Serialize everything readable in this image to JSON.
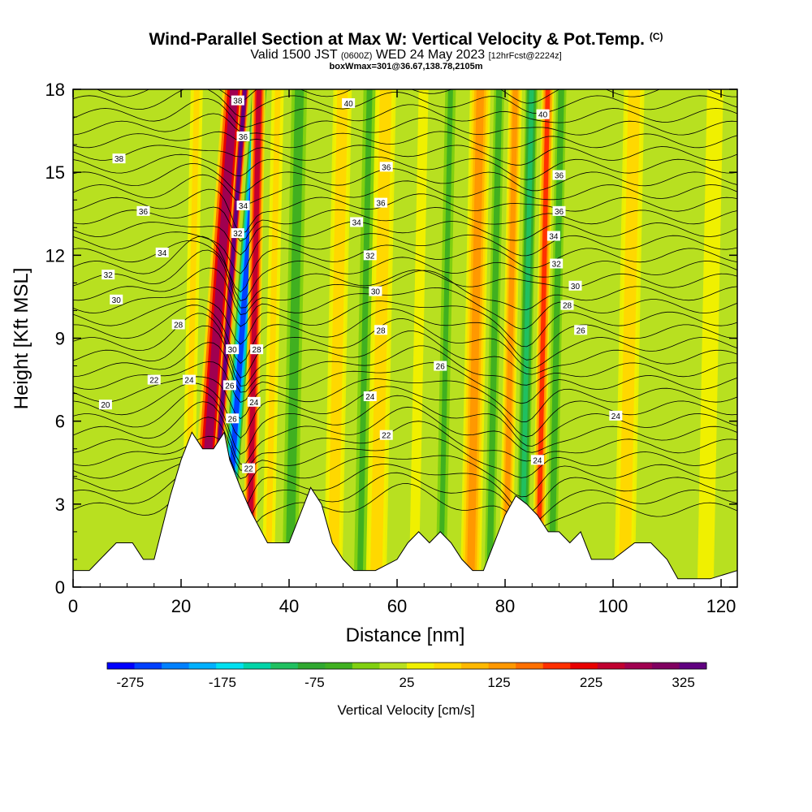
{
  "chart_data": {
    "type": "heatmap",
    "title": "Wind-Parallel Section at Max W: Vertical Velocity & Pot.Temp.",
    "title_mark": "(C)",
    "subtitle_main": "Valid 1500 JST",
    "subtitle_utc": "(0600Z)",
    "subtitle_date": "WED 24 May 2023",
    "subtitle_fcst": "[12hrFcst@2224z]",
    "subtitle2": "boxWmax=301@36.67,138.78,2105m",
    "xlabel": "Distance [nm]",
    "ylabel": "Height [Kft MSL]",
    "xlim": [
      0,
      123
    ],
    "ylim": [
      0,
      18
    ],
    "x_ticks": [
      "0",
      "20",
      "40",
      "60",
      "80",
      "100",
      "120"
    ],
    "y_ticks": [
      "0",
      "3",
      "6",
      "9",
      "12",
      "15",
      "18"
    ],
    "colorbar": {
      "title": "Vertical Velocity [cm/s]",
      "tick_labels": [
        "-275",
        "-175",
        "-75",
        "25",
        "125",
        "225",
        "325"
      ],
      "tick_values": [
        -275,
        -175,
        -75,
        25,
        125,
        225,
        325
      ],
      "range": [
        -300,
        350
      ],
      "colors": [
        "#0000ff",
        "#0040ff",
        "#0080ff",
        "#00b0ff",
        "#00e0f0",
        "#00d4a8",
        "#20c060",
        "#30a830",
        "#40b020",
        "#80d010",
        "#b8e020",
        "#f0f000",
        "#ffd800",
        "#ffb800",
        "#ff9800",
        "#ff7000",
        "#ff3000",
        "#e80000",
        "#c00030",
        "#a00050",
        "#800060",
        "#600080"
      ]
    },
    "velocity_columns": [
      {
        "x": 2,
        "w": 2.5,
        "v": 20
      },
      {
        "x": 22,
        "w": 1.5,
        "v": 60
      },
      {
        "x": 26.5,
        "w": 2.2,
        "v": 280
      },
      {
        "x": 28.5,
        "w": 0.9,
        "v": 330
      },
      {
        "x": 31.2,
        "w": 1.4,
        "v": -260
      },
      {
        "x": 33.5,
        "w": 1.3,
        "v": 260
      },
      {
        "x": 37,
        "w": 1.5,
        "v": 60
      },
      {
        "x": 41,
        "w": 1.5,
        "v": -60
      },
      {
        "x": 49,
        "w": 1.8,
        "v": 70
      },
      {
        "x": 54,
        "w": 1.5,
        "v": -40
      },
      {
        "x": 57,
        "w": 2.0,
        "v": 80
      },
      {
        "x": 64,
        "w": 1.2,
        "v": 50
      },
      {
        "x": 69,
        "w": 1.3,
        "v": -40
      },
      {
        "x": 74.5,
        "w": 2.0,
        "v": 140
      },
      {
        "x": 78,
        "w": 1.0,
        "v": -60
      },
      {
        "x": 81,
        "w": 1.3,
        "v": 120
      },
      {
        "x": 84,
        "w": 1.2,
        "v": -120
      },
      {
        "x": 87,
        "w": 1.2,
        "v": 180
      },
      {
        "x": 89.5,
        "w": 1.0,
        "v": -50
      },
      {
        "x": 103,
        "w": 2.0,
        "v": 70
      },
      {
        "x": 118,
        "w": 2.0,
        "v": 40
      }
    ],
    "terrain": [
      [
        0,
        0.6
      ],
      [
        3,
        0.6
      ],
      [
        5,
        1
      ],
      [
        8,
        1.6
      ],
      [
        11,
        1.6
      ],
      [
        13,
        1
      ],
      [
        15,
        1
      ],
      [
        18,
        3.3
      ],
      [
        20,
        4.6
      ],
      [
        22,
        5.6
      ],
      [
        24,
        5
      ],
      [
        26,
        5
      ],
      [
        28,
        5.6
      ],
      [
        29,
        4.6
      ],
      [
        31,
        3.6
      ],
      [
        33,
        2.7
      ],
      [
        36,
        1.6
      ],
      [
        40,
        1.6
      ],
      [
        42,
        2.6
      ],
      [
        44,
        3.6
      ],
      [
        46,
        3
      ],
      [
        48,
        1.6
      ],
      [
        50,
        1
      ],
      [
        52,
        0.6
      ],
      [
        56,
        0.6
      ],
      [
        60,
        1
      ],
      [
        62,
        1.6
      ],
      [
        64,
        2
      ],
      [
        66,
        1.6
      ],
      [
        68,
        2
      ],
      [
        70,
        1.6
      ],
      [
        72,
        1
      ],
      [
        74,
        0.6
      ],
      [
        76,
        0.6
      ],
      [
        78,
        1.6
      ],
      [
        80,
        2.6
      ],
      [
        82,
        3.3
      ],
      [
        84,
        3
      ],
      [
        86,
        2.6
      ],
      [
        88,
        2
      ],
      [
        90,
        2
      ],
      [
        92,
        1.6
      ],
      [
        94,
        2
      ],
      [
        96,
        1
      ],
      [
        98,
        1
      ],
      [
        100,
        1
      ],
      [
        104,
        1.6
      ],
      [
        107,
        1.6
      ],
      [
        110,
        1
      ],
      [
        112,
        0.3
      ],
      [
        118,
        0.3
      ],
      [
        123,
        0.6
      ]
    ],
    "isentropes": {
      "labels": [
        {
          "x": 6,
          "y": 6.6,
          "text": "20"
        },
        {
          "x": 15,
          "y": 7.5,
          "text": "22"
        },
        {
          "x": 21.5,
          "y": 7.5,
          "text": "24"
        },
        {
          "x": 29,
          "y": 7.3,
          "text": "26"
        },
        {
          "x": 29.5,
          "y": 6.1,
          "text": "26"
        },
        {
          "x": 33.5,
          "y": 6.7,
          "text": "24"
        },
        {
          "x": 32.5,
          "y": 4.3,
          "text": "22"
        },
        {
          "x": 19.5,
          "y": 9.5,
          "text": "28"
        },
        {
          "x": 29.5,
          "y": 8.6,
          "text": "30"
        },
        {
          "x": 34,
          "y": 8.6,
          "text": "28"
        },
        {
          "x": 8,
          "y": 10.4,
          "text": "30"
        },
        {
          "x": 6.5,
          "y": 11.3,
          "text": "32"
        },
        {
          "x": 16.5,
          "y": 12.1,
          "text": "34"
        },
        {
          "x": 13,
          "y": 13.6,
          "text": "36"
        },
        {
          "x": 8.5,
          "y": 15.5,
          "text": "38"
        },
        {
          "x": 30.5,
          "y": 17.6,
          "text": "38"
        },
        {
          "x": 31.5,
          "y": 16.3,
          "text": "36"
        },
        {
          "x": 31.5,
          "y": 13.8,
          "text": "34"
        },
        {
          "x": 30.5,
          "y": 12.8,
          "text": "32"
        },
        {
          "x": 51,
          "y": 17.5,
          "text": "40"
        },
        {
          "x": 58,
          "y": 15.2,
          "text": "36"
        },
        {
          "x": 57,
          "y": 13.9,
          "text": "36"
        },
        {
          "x": 52.5,
          "y": 13.2,
          "text": "34"
        },
        {
          "x": 55,
          "y": 12.0,
          "text": "32"
        },
        {
          "x": 56,
          "y": 10.7,
          "text": "30"
        },
        {
          "x": 57,
          "y": 9.3,
          "text": "28"
        },
        {
          "x": 68,
          "y": 8.0,
          "text": "26"
        },
        {
          "x": 55,
          "y": 6.9,
          "text": "24"
        },
        {
          "x": 58,
          "y": 5.5,
          "text": "22"
        },
        {
          "x": 87,
          "y": 17.1,
          "text": "40"
        },
        {
          "x": 90,
          "y": 14.9,
          "text": "36"
        },
        {
          "x": 90,
          "y": 13.6,
          "text": "36"
        },
        {
          "x": 89,
          "y": 12.7,
          "text": "34"
        },
        {
          "x": 89.5,
          "y": 11.7,
          "text": "32"
        },
        {
          "x": 93,
          "y": 10.9,
          "text": "30"
        },
        {
          "x": 91.5,
          "y": 10.2,
          "text": "28"
        },
        {
          "x": 94,
          "y": 9.3,
          "text": "26"
        },
        {
          "x": 86,
          "y": 4.6,
          "text": "24"
        },
        {
          "x": 100.5,
          "y": 6.2,
          "text": "24"
        }
      ]
    }
  }
}
